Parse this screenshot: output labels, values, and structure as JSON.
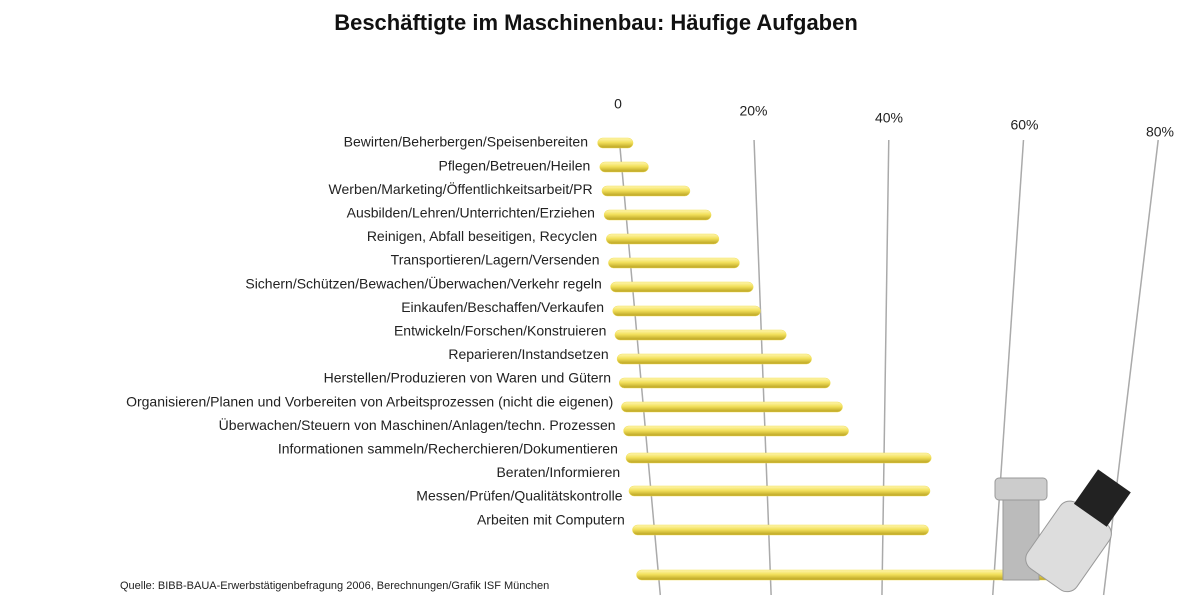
{
  "chart_data": {
    "type": "bar",
    "orientation": "horizontal",
    "title": "Beschäftigte im Maschinenbau: Häufige Aufgaben",
    "categories": [
      "Bewirten/Beherbergen/Speisenbereiten",
      "Pflegen/Betreuen/Heilen",
      "Werben/Marketing/Öffentlichkeitsarbeit/PR",
      "Ausbilden/Lehren/Unterrichten/Erziehen",
      "Reinigen, Abfall beseitigen, Recyclen",
      "Transportieren/Lagern/Versenden",
      "Sichern/Schützen/Bewachen/Überwachen/Verkehr regeln",
      "Einkaufen/Beschaffen/Verkaufen",
      "Entwickeln/Forschen/Konstruieren",
      "Reparieren/Instandsetzen",
      "Herstellen/Produzieren von Waren und Gütern",
      "Organisieren/Planen und Vorbereiten von Arbeitsprozessen (nicht die eigenen)",
      "Überwachen/Steuern von Maschinen/Anlagen/techn. Prozessen",
      "Informationen sammeln/Recherchieren/Dokumentieren",
      "Beraten/Informieren",
      "Messen/Prüfen/Qualitätskontrolle",
      "Arbeiten mit Computern"
    ],
    "values": [
      2,
      4,
      10,
      13,
      14,
      17,
      19,
      20,
      24,
      28,
      31,
      33,
      34,
      48,
      48,
      48,
      72
    ],
    "color": "#f2e05a",
    "xlim": [
      0,
      80
    ],
    "xticks": [
      0,
      {
        "value": 20,
        "label": "20%"
      },
      {
        "value": 40,
        "label": "40%"
      },
      {
        "value": 60,
        "label": "60%"
      },
      {
        "value": 80,
        "label": "80%"
      }
    ],
    "grid": true,
    "source": "Quelle: BIBB-BAUA-Erwerbstätigenbefragung 2006, Berechnungen/Grafik ISF München"
  }
}
